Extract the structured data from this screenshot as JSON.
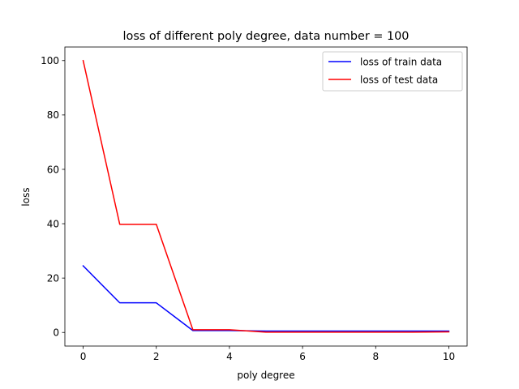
{
  "chart_data": {
    "type": "line",
    "title": "loss of different poly degree, data number = 100",
    "xlabel": "poly degree",
    "ylabel": "loss",
    "xlim": [
      -0.5,
      10.5
    ],
    "ylim": [
      -5,
      105
    ],
    "xticks": [
      0,
      2,
      4,
      6,
      8,
      10
    ],
    "yticks": [
      0,
      20,
      40,
      60,
      80,
      100
    ],
    "grid": false,
    "legend_position": "top-right",
    "x": [
      0,
      1,
      2,
      3,
      4,
      5,
      6,
      7,
      8,
      9,
      10
    ],
    "series": [
      {
        "name": "loss of train data",
        "color": "#0000ff",
        "values": [
          24.5,
          10.9,
          10.9,
          0.7,
          0.7,
          0.5,
          0.5,
          0.5,
          0.5,
          0.5,
          0.5
        ]
      },
      {
        "name": "loss of test data",
        "color": "#ff0000",
        "values": [
          100,
          39.8,
          39.8,
          1.0,
          1.0,
          0.1,
          0.1,
          0.1,
          0.1,
          0.1,
          0.2
        ]
      }
    ]
  }
}
